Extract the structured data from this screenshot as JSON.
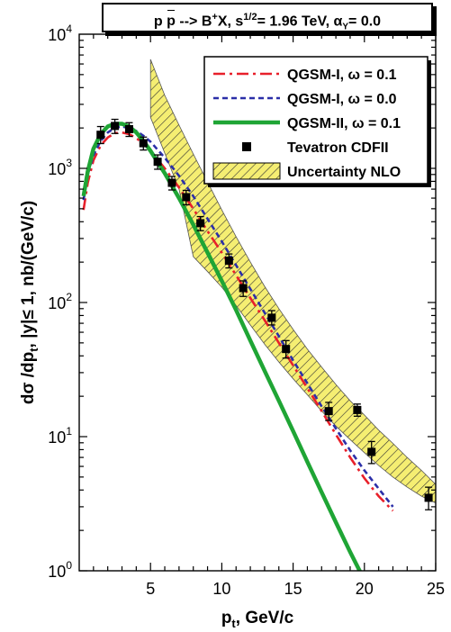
{
  "title": {
    "process": "p",
    "antiproton": "p",
    "arrow_text": " --> B",
    "sup_plus": "+",
    "after_x": "X, s",
    "sup_half": "1/2",
    "energy": "= 1.96 TeV, α",
    "sub_upsilon": "Υ",
    "alpha_value": "= 0.0"
  },
  "xlabel": {
    "main": "p",
    "sub": "t",
    "rest": ", GeV/c"
  },
  "ylabel": {
    "a": "dσ /dp",
    "sub": "t",
    "b": ", |y|≤ 1, nb/(GeV/c)"
  },
  "legend": {
    "entries": [
      {
        "label": "QGSM-I, ω = 0.1",
        "style": "dashdot",
        "color": "#e8202a"
      },
      {
        "label": "QGSM-I, ω = 0.0",
        "style": "dash",
        "color": "#2b2fa8"
      },
      {
        "label": "QGSM-II, ω = 0.1",
        "style": "solid",
        "color": "#1fa535"
      },
      {
        "label": "Tevatron CDFII",
        "style": "marker",
        "color": "#000000"
      },
      {
        "label": "Uncertainty NLO",
        "style": "hatch",
        "color": "#f5ee72"
      }
    ]
  },
  "chart_data": {
    "type": "line",
    "xlabel": "pt, GeV/c",
    "ylabel": "dσ /dpt, |y|≤ 1, nb/(GeV/c)",
    "xlim": [
      0,
      25
    ],
    "ylim": [
      1,
      10000
    ],
    "yscale": "log",
    "x_ticks": [
      "5",
      "10",
      "15",
      "20",
      "25"
    ],
    "y_ticks": [
      {
        "base": "10",
        "exp": "0"
      },
      {
        "base": "10",
        "exp": "1"
      },
      {
        "base": "10",
        "exp": "2"
      },
      {
        "base": "10",
        "exp": "3"
      },
      {
        "base": "10",
        "exp": "4"
      }
    ],
    "series": [
      {
        "name": "QGSM-I, ω = 0.1",
        "color": "#e8202a",
        "style": "dashdot",
        "x": [
          0.3,
          0.6,
          1.0,
          1.5,
          2.0,
          2.5,
          3.0,
          3.5,
          4.0,
          4.5,
          5.0,
          6.0,
          7.0,
          8.0,
          9.0,
          10.0,
          11.0,
          12.0,
          13.0,
          14.0,
          15.0,
          16.0,
          17.0,
          18.0,
          19.0,
          20.0,
          21.0,
          22.0
        ],
        "y": [
          490,
          780,
          1150,
          1480,
          1700,
          1830,
          1850,
          1800,
          1680,
          1530,
          1350,
          1000,
          720,
          500,
          340,
          235,
          160,
          108,
          74,
          50,
          34,
          23,
          15.5,
          10.4,
          7.0,
          4.9,
          3.6,
          2.8
        ]
      },
      {
        "name": "QGSM-I, ω = 0.0",
        "color": "#2b2fa8",
        "style": "dash",
        "x": [
          0.3,
          0.6,
          1.0,
          1.5,
          2.0,
          2.5,
          3.0,
          3.5,
          4.0,
          4.5,
          5.0,
          6.0,
          7.0,
          8.0,
          9.0,
          10.0,
          11.0,
          12.0,
          13.0,
          14.0,
          15.0,
          16.0,
          17.0,
          18.0,
          19.0,
          20.0,
          21.0,
          22.0
        ],
        "y": [
          580,
          900,
          1250,
          1600,
          1850,
          2000,
          2050,
          2000,
          1900,
          1750,
          1580,
          1200,
          880,
          620,
          420,
          285,
          190,
          126,
          84,
          56,
          37,
          25,
          16.8,
          11.5,
          7.9,
          5.6,
          4.1,
          3.0
        ]
      },
      {
        "name": "QGSM-II, ω = 0.1",
        "color": "#1fa535",
        "style": "solid",
        "x": [
          0.3,
          0.6,
          1.0,
          1.5,
          2.0,
          2.5,
          3.0,
          3.5,
          4.0,
          4.5,
          5.0,
          6.0,
          7.0,
          8.0,
          9.0,
          10.0,
          11.0,
          12.0,
          13.0,
          14.0,
          15.0,
          16.0,
          17.0,
          18.0,
          19.0,
          20.0
        ],
        "y": [
          620,
          950,
          1400,
          1800,
          2050,
          2150,
          2150,
          2050,
          1850,
          1600,
          1350,
          920,
          600,
          380,
          235,
          145,
          88,
          52,
          31,
          18.5,
          11,
          6.5,
          3.85,
          2.3,
          1.38,
          0.85
        ]
      },
      {
        "name": "Tevatron CDFII",
        "color": "#000000",
        "style": "marker",
        "x": [
          1.5,
          2.5,
          3.5,
          4.5,
          5.5,
          6.5,
          7.5,
          8.5,
          10.5,
          11.5,
          13.5,
          14.5,
          17.5,
          19.5,
          20.5,
          24.5
        ],
        "y": [
          1780,
          2070,
          1960,
          1540,
          1120,
          780,
          610,
          390,
          205,
          128,
          77,
          45,
          15.5,
          15.8,
          7.7,
          3.5
        ],
        "err_low": [
          1530,
          1820,
          1730,
          1370,
          985,
          690,
          535,
          343,
          181,
          111,
          68,
          38.5,
          13.2,
          14.2,
          6.3,
          2.85
        ],
        "err_high": [
          2050,
          2320,
          2190,
          1710,
          1260,
          870,
          685,
          437,
          230,
          145,
          87,
          52,
          18,
          17.5,
          9.2,
          4.2
        ]
      },
      {
        "name": "Uncertainty NLO",
        "color": "#f5ee72",
        "style": "band",
        "x": [
          5.0,
          6.0,
          7.0,
          8.0,
          9.0,
          10.0,
          11.0,
          12.0,
          13.0,
          14.0,
          15.0,
          16.0,
          17.0,
          18.0,
          19.0,
          20.0,
          21.0,
          22.0,
          23.0,
          24.0,
          25.0
        ],
        "upper": [
          6500,
          3500,
          2100,
          1280,
          790,
          490,
          310,
          200,
          132,
          90,
          63,
          45,
          33,
          24.5,
          18.5,
          14.5,
          11.2,
          8.9,
          7.0,
          5.6,
          4.4
        ],
        "lower": [
          2400,
          1300,
          700,
          220,
          170,
          130,
          95,
          68,
          49,
          36,
          27,
          20.5,
          15.5,
          12.0,
          9.5,
          7.6,
          6.1,
          5.0,
          4.2,
          3.6,
          3.2
        ]
      }
    ]
  }
}
